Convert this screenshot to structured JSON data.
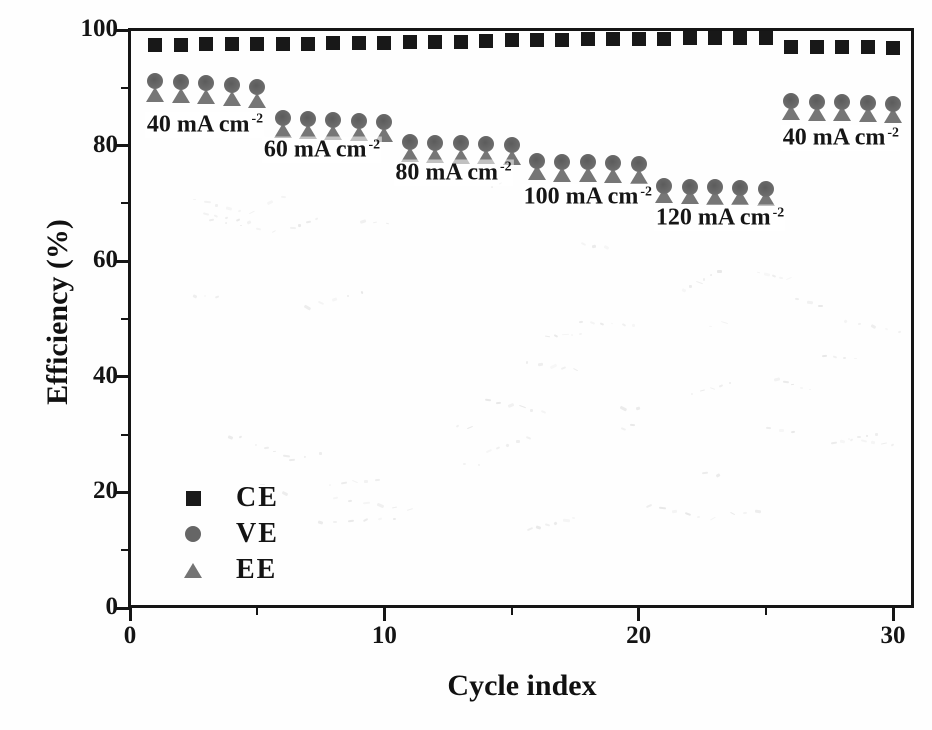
{
  "chart_data": {
    "type": "scatter",
    "title": "",
    "xlabel": "Cycle index",
    "ylabel": "Efficiency (%)",
    "xlim": [
      0,
      30.8
    ],
    "ylim": [
      0,
      100
    ],
    "grid": false,
    "x_major_ticks": [
      0,
      10,
      20,
      30
    ],
    "x_minor_ticks": [
      5,
      15,
      25
    ],
    "y_major_ticks": [
      0,
      20,
      40,
      60,
      80,
      100
    ],
    "y_minor_ticks": [
      10,
      30,
      50,
      70,
      90
    ],
    "x": [
      1,
      2,
      3,
      4,
      5,
      6,
      7,
      8,
      9,
      10,
      11,
      12,
      13,
      14,
      15,
      16,
      17,
      18,
      19,
      20,
      21,
      22,
      23,
      24,
      25,
      26,
      27,
      28,
      29,
      30
    ],
    "series": [
      {
        "name": "CE",
        "marker": "square",
        "color": "#181818",
        "values": [
          97.4,
          97.4,
          97.5,
          97.5,
          97.5,
          97.6,
          97.6,
          97.7,
          97.7,
          97.8,
          97.9,
          98.0,
          98.0,
          98.1,
          98.2,
          98.2,
          98.3,
          98.4,
          98.4,
          98.5,
          98.5,
          98.6,
          98.6,
          98.7,
          98.7,
          97.1,
          97.1,
          97.0,
          97.0,
          96.9
        ]
      },
      {
        "name": "VE",
        "marker": "circle",
        "color": "#6b6b6b",
        "values": [
          91.2,
          91.0,
          90.8,
          90.5,
          90.2,
          84.8,
          84.6,
          84.5,
          84.3,
          84.1,
          80.6,
          80.5,
          80.4,
          80.3,
          80.1,
          77.3,
          77.2,
          77.1,
          77.0,
          76.8,
          73.0,
          72.9,
          72.8,
          72.7,
          72.5,
          87.7,
          87.6,
          87.5,
          87.4,
          87.2
        ]
      },
      {
        "name": "EE",
        "marker": "triangle",
        "color": "#767676",
        "values": [
          88.8,
          88.6,
          88.4,
          88.1,
          87.8,
          82.5,
          82.3,
          82.2,
          82.0,
          81.8,
          78.4,
          78.2,
          78.1,
          78.0,
          77.8,
          75.2,
          75.0,
          74.9,
          74.8,
          74.6,
          71.3,
          71.1,
          71.0,
          70.9,
          70.7,
          85.7,
          85.5,
          85.4,
          85.3,
          85.1
        ]
      }
    ],
    "annotations": [
      {
        "text": "40 mA cm",
        "sup": "-2",
        "x": 2.95,
        "y": 83.6
      },
      {
        "text": "60 mA cm",
        "sup": "-2",
        "x": 7.55,
        "y": 79.2
      },
      {
        "text": "80 mA cm",
        "sup": "-2",
        "x": 12.72,
        "y": 75.3
      },
      {
        "text": "100 mA cm",
        "sup": "-2",
        "x": 18.0,
        "y": 71.1
      },
      {
        "text": "120 mA cm",
        "sup": "-2",
        "x": 23.2,
        "y": 67.5
      },
      {
        "text": "40 mA cm",
        "sup": "-2",
        "x": 27.95,
        "y": 81.3
      }
    ],
    "legend": {
      "position": "lower-left",
      "items": [
        {
          "label": "CE",
          "marker": "square"
        },
        {
          "label": "VE",
          "marker": "circle"
        },
        {
          "label": "EE",
          "marker": "triangle"
        }
      ]
    }
  }
}
